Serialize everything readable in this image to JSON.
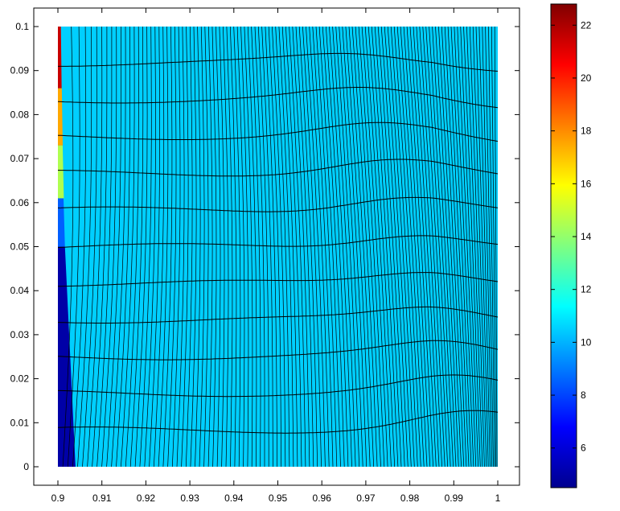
{
  "chart_data": {
    "type": "heatmap",
    "title": "",
    "xlabel": "",
    "ylabel": "",
    "xlim": [
      0.9,
      1.0
    ],
    "ylim": [
      0,
      0.1
    ],
    "x_ticks": [
      0.9,
      0.91,
      0.92,
      0.93,
      0.94,
      0.95,
      0.96,
      0.97,
      0.98,
      0.99,
      1.0
    ],
    "x_tick_labels": [
      "0.9",
      "0.91",
      "0.92",
      "0.93",
      "0.94",
      "0.95",
      "0.96",
      "0.97",
      "0.98",
      "0.99",
      "1"
    ],
    "y_ticks": [
      0,
      0.01,
      0.02,
      0.03,
      0.04,
      0.05,
      0.06,
      0.07,
      0.08,
      0.09,
      0.1
    ],
    "y_tick_labels": [
      "0",
      "0.01",
      "0.02",
      "0.03",
      "0.04",
      "0.05",
      "0.06",
      "0.07",
      "0.08",
      "0.09",
      "0.1"
    ],
    "colorbar": {
      "colormap": "jet",
      "range": [
        4.5,
        22.8
      ],
      "ticks": [
        6,
        8,
        10,
        12,
        14,
        16,
        18,
        20,
        22
      ],
      "tick_labels": [
        "6",
        "8",
        "10",
        "12",
        "14",
        "16",
        "18",
        "20",
        "22"
      ]
    },
    "mesh": {
      "dominant_value": 10.5,
      "left_edge_values": [
        {
          "y": [
            0,
            0.05
          ],
          "value": 5.2
        },
        {
          "y": [
            0.05,
            0.061
          ],
          "value": 8.5
        },
        {
          "y": [
            0.061,
            0.073
          ],
          "value": 14.5
        },
        {
          "y": [
            0.073,
            0.086
          ],
          "value": 17.5
        },
        {
          "y": [
            0.086,
            0.1
          ],
          "value": 21.5
        }
      ],
      "horizontal_lines": 12,
      "vertical_lines": 120,
      "grid": true
    }
  }
}
